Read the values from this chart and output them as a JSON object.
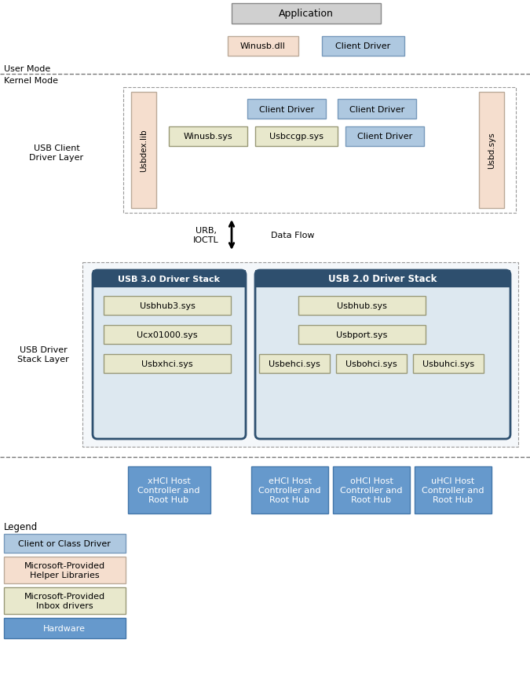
{
  "fig_width": 6.75,
  "fig_height": 8.62,
  "dpi": 100,
  "bg_color": "#ffffff",
  "colors": {
    "light_gray_box": "#d0d0d0",
    "client_driver_blue": "#aec8e0",
    "helper_peach": "#f5dece",
    "inbox_green": "#e8e8cc",
    "dark_navy": "#2e5070",
    "navy_header": "#2e4f6e",
    "blue_hardware": "#6699cc",
    "stack_bg": "#dde8f0"
  },
  "texts": {
    "application": "Application",
    "winusb_dll": "Winusb.dll",
    "client_driver_top": "Client Driver",
    "user_mode": "User Mode",
    "kernel_mode": "Kernel Mode",
    "usb_client_driver_layer": "USB Client\nDriver Layer",
    "usb_driver_stack_layer": "USB Driver\nStack Layer",
    "usbdex_lib": "Usbdex.lib",
    "usbd_sys": "Usbd.sys",
    "client_driver1": "Client Driver",
    "client_driver2": "Client Driver",
    "winusb_sys": "Winusb.sys",
    "usbccgp_sys": "Usbccgp.sys",
    "client_driver3": "Client Driver",
    "urb_ioctl": "URB,\nIOCTL",
    "data_flow": "Data Flow",
    "usb30_stack": "USB 3.0 Driver Stack",
    "usb20_stack": "USB 2.0 Driver Stack",
    "usbhub3_sys": "Usbhub3.sys",
    "ucx01000_sys": "Ucx01000.sys",
    "usbxhci_sys": "Usbxhci.sys",
    "usbhub_sys": "Usbhub.sys",
    "usbport_sys": "Usbport.sys",
    "usbehci_sys": "Usbehci.sys",
    "usbohci_sys": "Usbohci.sys",
    "usbuhci_sys": "Usbuhci.sys",
    "xhci_hub": "xHCI Host\nController and\nRoot Hub",
    "ehci_hub": "eHCI Host\nController and\nRoot Hub",
    "ohci_hub": "oHCI Host\nController and\nRoot Hub",
    "uhci_hub": "uHCI Host\nController and\nRoot Hub",
    "legend": "Legend",
    "legend_client": "Client or Class Driver",
    "legend_helper": "Microsoft-Provided\nHelper Libraries",
    "legend_inbox": "Microsoft-Provided\nInbox drivers",
    "legend_hardware": "Hardware"
  }
}
